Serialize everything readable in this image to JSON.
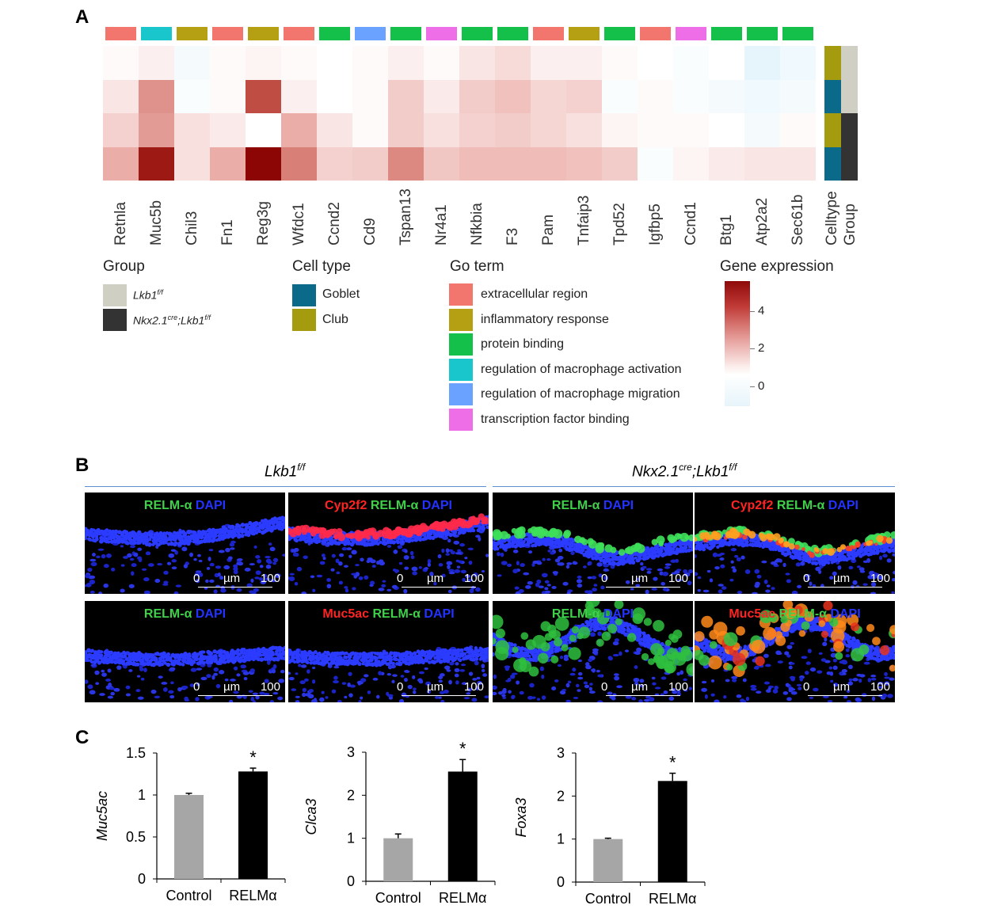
{
  "panel_a": {
    "label": "A",
    "genes": [
      "Retnla",
      "Muc5b",
      "Chil3",
      "Fn1",
      "Reg3g",
      "Wfdc1",
      "Ccnd2",
      "Cd9",
      "Tspan13",
      "Nr4a1",
      "Nfkbia",
      "F3",
      "Pam",
      "Tnfaip3",
      "Tpd52",
      "Igfbp5",
      "Ccnd1",
      "Btg1",
      "Atp2a2",
      "Sec61b"
    ],
    "annotation_labels": [
      "Celltype",
      "Group"
    ],
    "go_term_of_gene": [
      "extracellular region",
      "regulation of macrophage activation",
      "inflammatory response",
      "extracellular region",
      "inflammatory response",
      "extracellular region",
      "protein binding",
      "regulation of macrophage migration",
      "protein binding",
      "transcription factor binding",
      "protein binding",
      "protein binding",
      "extracellular region",
      "inflammatory response",
      "protein binding",
      "extracellular region",
      "transcription factor binding",
      "protein binding",
      "protein binding",
      "protein binding"
    ],
    "row_celltype": [
      "Club",
      "Goblet",
      "Club",
      "Goblet"
    ],
    "row_group": [
      "Lkb1f/f",
      "Lkb1f/f",
      "Nkx2.1cre;Lkb1f/f",
      "Nkx2.1cre;Lkb1f/f"
    ],
    "heatmap_values": [
      [
        0.1,
        0.3,
        -0.2,
        0.1,
        0.2,
        0.1,
        0.0,
        0.1,
        0.3,
        0.1,
        0.5,
        0.7,
        0.3,
        0.3,
        0.1,
        0.0,
        -0.1,
        0.0,
        -0.5,
        -0.3
      ],
      [
        0.5,
        2.2,
        -0.1,
        0.1,
        3.7,
        0.3,
        0.0,
        0.1,
        1.0,
        0.4,
        1.0,
        1.2,
        0.8,
        0.9,
        -0.1,
        0.1,
        -0.1,
        -0.2,
        -0.3,
        -0.2
      ],
      [
        0.9,
        2.0,
        0.6,
        0.4,
        0.0,
        1.6,
        0.5,
        0.1,
        1.0,
        0.6,
        0.9,
        1.0,
        0.8,
        0.6,
        0.2,
        0.1,
        0.1,
        0.0,
        -0.2,
        0.1
      ],
      [
        1.6,
        5.0,
        0.6,
        1.6,
        5.6,
        2.6,
        0.9,
        1.0,
        2.4,
        1.1,
        1.3,
        1.3,
        1.3,
        1.2,
        1.0,
        -0.1,
        0.2,
        0.4,
        0.5,
        0.5
      ]
    ],
    "legend_group": {
      "title": "Group",
      "items": [
        {
          "name": "Lkb1",
          "sup": "f/f",
          "color": "#cfcfc4"
        },
        {
          "name": "Nkx2.1",
          "sup": "cre",
          "name2": ";Lkb1",
          "sup2": "f/f",
          "color": "#333333"
        }
      ]
    },
    "legend_celltype": {
      "title": "Cell type",
      "items": [
        {
          "name": "Goblet",
          "color": "#0b6a8a"
        },
        {
          "name": "Club",
          "color": "#a59b0e"
        }
      ]
    },
    "legend_goterm": {
      "title": "Go term",
      "items": [
        {
          "name": "extracellular region",
          "color": "#f2766e"
        },
        {
          "name": "inflammatory response",
          "color": "#b5a013"
        },
        {
          "name": "protein binding",
          "color": "#15c04a"
        },
        {
          "name": "regulation of macrophage activation",
          "color": "#19c6cb"
        },
        {
          "name": "regulation of macrophage migration",
          "color": "#6aa2ff"
        },
        {
          "name": "transcription factor binding",
          "color": "#ee6ee8"
        }
      ]
    },
    "legend_expression": {
      "title": "Gene expression",
      "ticks": [
        "4",
        "2",
        "0"
      ],
      "range": [
        -0.5,
        5.6
      ]
    }
  },
  "panel_b": {
    "label": "B",
    "left_group": {
      "name": "Lkb1",
      "sup": "f/f"
    },
    "right_group": {
      "name": "Nkx2.1",
      "sup": "cre",
      "name2": ";Lkb1",
      "sup2": "f/f"
    },
    "scale": {
      "start": "0",
      "unit": "µm",
      "end": "100"
    },
    "images": [
      {
        "label": [
          [
            "RELM-α ",
            "#3fd14a"
          ],
          [
            "DAPI",
            "#2432ff"
          ]
        ]
      },
      {
        "label": [
          [
            "Cyp2f2 ",
            "#ff2424"
          ],
          [
            "RELM-α ",
            "#3fd14a"
          ],
          [
            "DAPI",
            "#2432ff"
          ]
        ]
      },
      {
        "label": [
          [
            "RELM-α ",
            "#3fd14a"
          ],
          [
            "DAPI",
            "#2432ff"
          ]
        ]
      },
      {
        "label": [
          [
            "Cyp2f2 ",
            "#ff2424"
          ],
          [
            "RELM-α ",
            "#3fd14a"
          ],
          [
            "DAPI",
            "#2432ff"
          ]
        ]
      },
      {
        "label": [
          [
            "RELM-α ",
            "#3fd14a"
          ],
          [
            "DAPI",
            "#2432ff"
          ]
        ]
      },
      {
        "label": [
          [
            "Muc5ac ",
            "#ff2424"
          ],
          [
            "RELM-α ",
            "#3fd14a"
          ],
          [
            "DAPI",
            "#2432ff"
          ]
        ]
      },
      {
        "label": [
          [
            "RELM-α ",
            "#3fd14a"
          ],
          [
            "DAPI",
            "#2432ff"
          ]
        ]
      },
      {
        "label": [
          [
            "Muc5ac ",
            "#ff2424"
          ],
          [
            "RELM-α ",
            "#3fd14a"
          ],
          [
            "DAPI",
            "#2432ff"
          ]
        ]
      }
    ]
  },
  "panel_c": {
    "label": "C"
  },
  "chart_data": [
    {
      "type": "bar",
      "categories": [
        "Control",
        "RELMα"
      ],
      "values": [
        1.0,
        1.28
      ],
      "errors": [
        0.02,
        0.04
      ],
      "ylabel": "Muc5ac",
      "ylim": [
        0,
        1.5
      ],
      "yticks": [
        "0",
        "0.5",
        "1",
        "1.5"
      ],
      "significance": [
        "",
        "*"
      ],
      "colors": [
        "#a6a6a6",
        "#000000"
      ]
    },
    {
      "type": "bar",
      "categories": [
        "Control",
        "RELMα"
      ],
      "values": [
        1.0,
        2.55
      ],
      "errors": [
        0.1,
        0.28
      ],
      "ylabel": "Clca3",
      "ylim": [
        0,
        3
      ],
      "yticks": [
        "0",
        "1",
        "2",
        "3"
      ],
      "significance": [
        "",
        "*"
      ],
      "colors": [
        "#a6a6a6",
        "#000000"
      ]
    },
    {
      "type": "bar",
      "categories": [
        "Control",
        "RELMα"
      ],
      "values": [
        1.0,
        2.35
      ],
      "errors": [
        0.02,
        0.18
      ],
      "ylabel": "Foxa3",
      "ylim": [
        0,
        3
      ],
      "yticks": [
        "0",
        "1",
        "2",
        "3"
      ],
      "significance": [
        "",
        "*"
      ],
      "colors": [
        "#a6a6a6",
        "#000000"
      ]
    }
  ]
}
